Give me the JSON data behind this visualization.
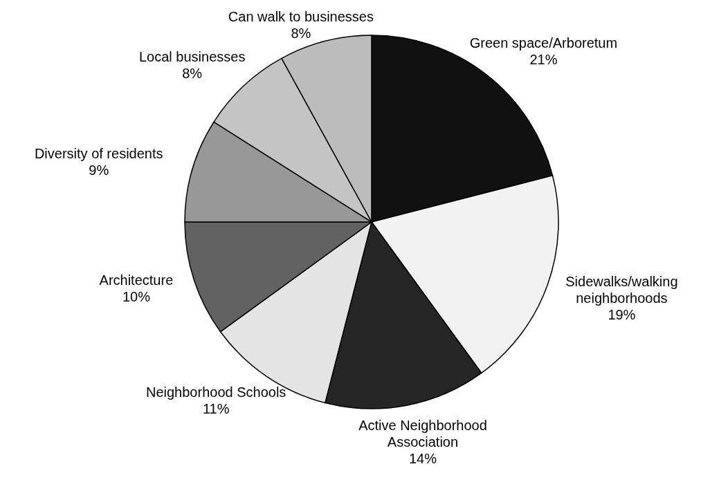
{
  "chart_data": {
    "type": "pie",
    "categories": [
      "Green space/Arboretum",
      "Sidewalks/walking neighborhoods",
      "Active Neighborhood Association",
      "Neighborhood Schools",
      "Architecture",
      "Diversity of residents",
      "Local businesses",
      "Can walk to businesses"
    ],
    "values": [
      21,
      19,
      14,
      11,
      10,
      9,
      8,
      8
    ],
    "value_labels": [
      "21%",
      "19%",
      "14%",
      "11%",
      "10%",
      "9%",
      "8%",
      "8%"
    ],
    "colors": [
      "#111111",
      "#f2f2f2",
      "#262626",
      "#e4e4e4",
      "#626262",
      "#989898",
      "#c4c4c4",
      "#bcbcbc"
    ]
  }
}
